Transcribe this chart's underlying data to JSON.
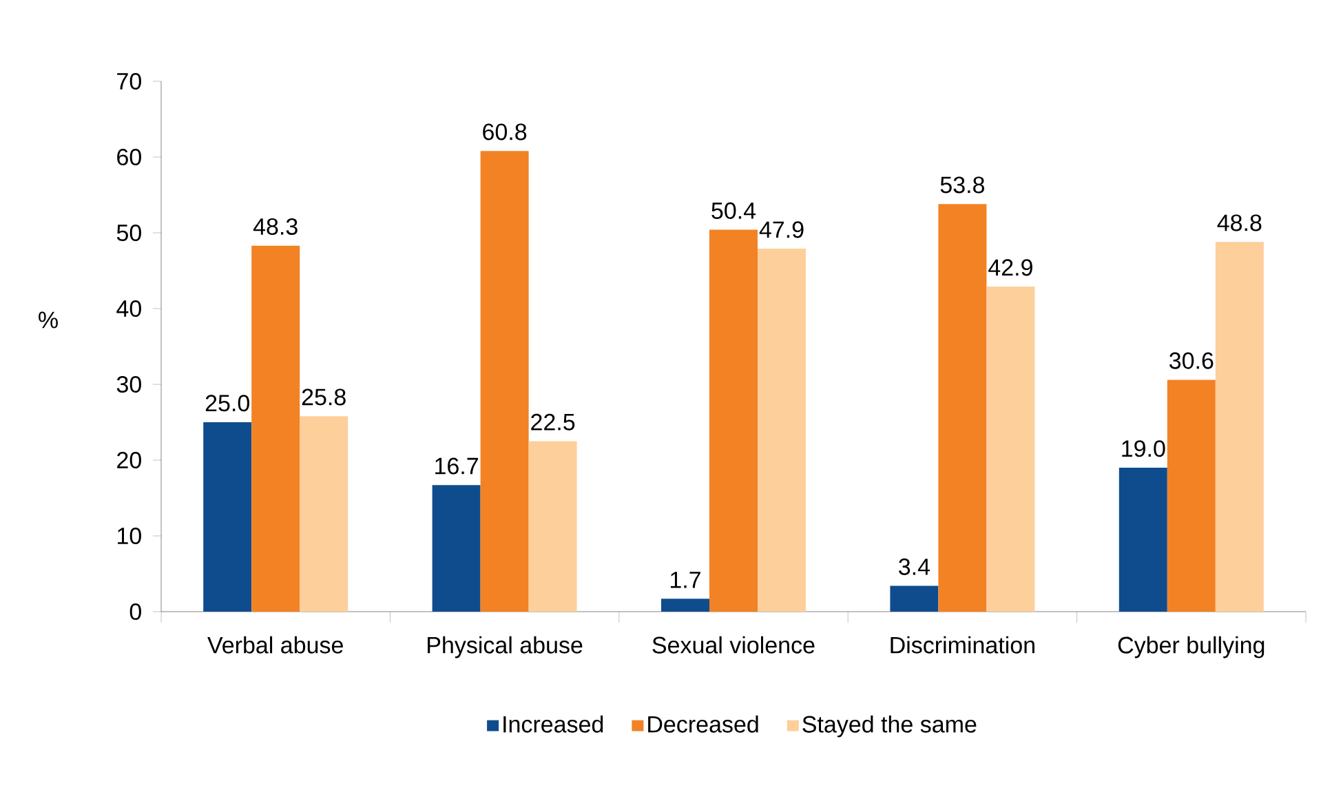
{
  "chart_data": {
    "type": "bar",
    "ylabel": "%",
    "categories": [
      "Verbal abuse",
      "Physical abuse",
      "Sexual violence",
      "Discrimination",
      "Cyber bullying"
    ],
    "series": [
      {
        "name": "Increased",
        "color": "#0f4c8d",
        "values": [
          25.0,
          16.7,
          1.7,
          3.4,
          19.0
        ],
        "value_labels": [
          "25.0",
          "16.7",
          "1.7",
          "3.4",
          "19.0"
        ]
      },
      {
        "name": "Decreased",
        "color": "#f28224",
        "values": [
          48.3,
          60.8,
          50.4,
          53.8,
          30.6
        ],
        "value_labels": [
          "48.3",
          "60.8",
          "50.4",
          "53.8",
          "30.6"
        ]
      },
      {
        "name": "Stayed the same",
        "color": "#fdcf9b",
        "values": [
          25.8,
          22.5,
          47.9,
          42.9,
          48.8
        ],
        "value_labels": [
          "25.8",
          "22.5",
          "47.9",
          "42.9",
          "48.8"
        ]
      }
    ],
    "ylim": [
      0,
      70
    ],
    "yticks": [
      0,
      10,
      20,
      30,
      40,
      50,
      60,
      70
    ],
    "grid": false,
    "legend": "bottom"
  }
}
